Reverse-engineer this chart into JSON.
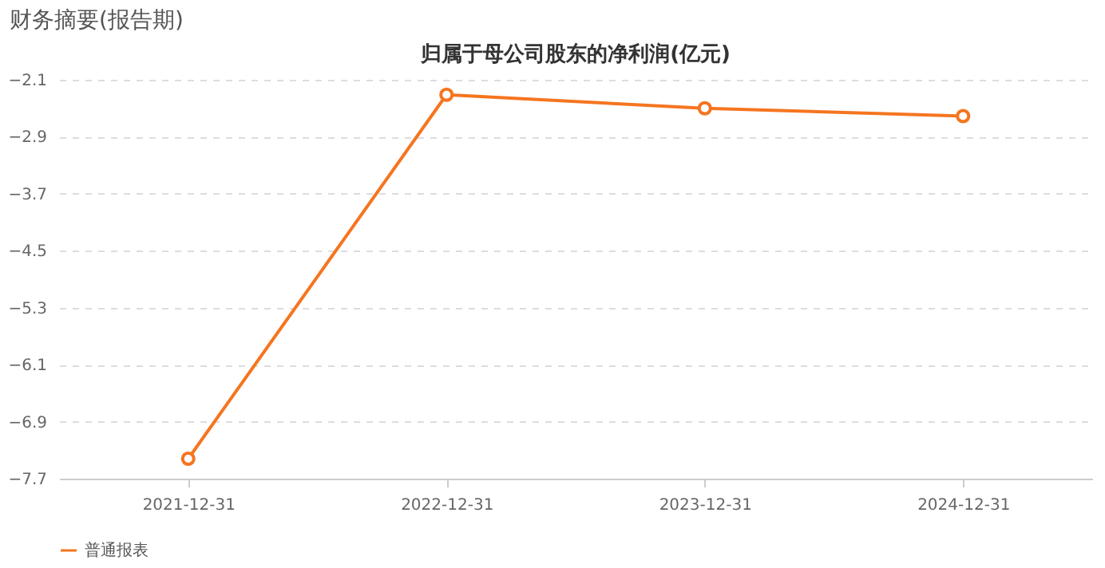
{
  "chart_data": {
    "type": "line",
    "title": "财务摘要(报告期)",
    "subtitle": "归属于母公司股东的净利润(亿元)",
    "categories": [
      "2021-12-31",
      "2022-12-31",
      "2023-12-31",
      "2024-12-31"
    ],
    "series": [
      {
        "name": "普通报表",
        "color": "#f5751f",
        "values": [
          -7.42,
          -2.31,
          -2.5,
          -2.61
        ]
      }
    ],
    "ylim": [
      -7.7,
      -2.1
    ],
    "yticks": [
      -2.1,
      -2.9,
      -3.7,
      -4.5,
      -5.3,
      -6.1,
      -6.9,
      -7.7
    ],
    "grid": "y",
    "legend": "bottom",
    "marker": "circle",
    "line_style": "solid"
  }
}
